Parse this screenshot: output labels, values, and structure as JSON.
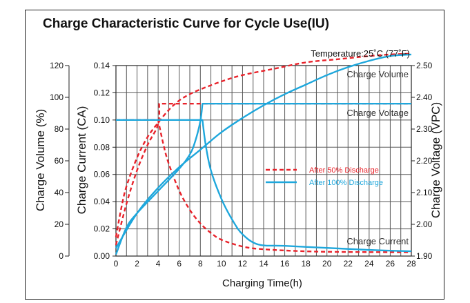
{
  "chart_data": {
    "type": "line",
    "title": "Charge Characteristic Curve for Cycle Use(IU)",
    "subtitle": "Temperature:25˚C (77˚F)",
    "xlabel": "Charging Time(h)",
    "ylabel_volume": "Charge Volume (%)",
    "ylabel_current": "Charge Current (CA)",
    "ylabel_voltage": "Charge Voltage (VPC)",
    "x_range": [
      0,
      28
    ],
    "volume_range": [
      0,
      120
    ],
    "current_range": [
      0,
      0.14
    ],
    "voltage_range": [
      1.9,
      2.5
    ],
    "x_ticks": [
      "0",
      "2",
      "4",
      "6",
      "8",
      "10",
      "12",
      "14",
      "16",
      "18",
      "20",
      "22",
      "24",
      "26",
      "28"
    ],
    "volume_ticks": [
      "0",
      "20",
      "40",
      "60",
      "80",
      "100",
      "120"
    ],
    "current_ticks": [
      "0.00",
      "0.02",
      "0.04",
      "0.06",
      "0.08",
      "0.10",
      "0.12",
      "0.14"
    ],
    "voltage_ticks": [
      "1.90",
      "2.00",
      "2.10",
      "2.20",
      "2.30",
      "2.40",
      "2.50"
    ],
    "grid": true,
    "legend_position": "center-right",
    "annotations": {
      "volume": "Charge Volume",
      "voltage": "Charge Voltage",
      "current": "Charge Current"
    },
    "series": [
      {
        "name": "After 50% Discharge",
        "color": "#e8232b",
        "style": "dashed",
        "volume": [
          [
            0,
            12
          ],
          [
            0.5,
            30
          ],
          [
            1,
            44
          ],
          [
            2,
            62
          ],
          [
            3,
            75
          ],
          [
            4,
            84
          ],
          [
            5,
            92
          ],
          [
            6,
            98
          ],
          [
            7,
            102
          ],
          [
            8,
            105
          ],
          [
            10,
            110
          ],
          [
            12,
            114
          ],
          [
            15,
            118
          ],
          [
            18,
            122
          ],
          [
            21,
            124
          ],
          [
            24,
            126
          ],
          [
            26,
            127
          ],
          [
            28,
            127.5
          ]
        ],
        "current": [
          [
            0,
            0.1
          ],
          [
            4,
            0.1
          ],
          [
            4.5,
            0.082
          ],
          [
            5,
            0.068
          ],
          [
            6,
            0.048
          ],
          [
            7,
            0.034
          ],
          [
            8,
            0.024
          ],
          [
            9,
            0.017
          ],
          [
            10,
            0.012
          ],
          [
            12,
            0.007
          ],
          [
            14,
            0.005
          ],
          [
            18,
            0.0035
          ],
          [
            22,
            0.003
          ],
          [
            28,
            0.0028
          ]
        ],
        "voltage": [
          [
            0,
            1.935
          ],
          [
            1,
            2.065
          ],
          [
            2,
            2.17
          ],
          [
            3,
            2.25
          ],
          [
            4,
            2.315
          ],
          [
            4.1,
            2.38
          ],
          [
            28,
            2.38
          ]
        ]
      },
      {
        "name": "After 100% Discharge",
        "color": "#1ea7dc",
        "style": "solid",
        "volume": [
          [
            0,
            5
          ],
          [
            2,
            27
          ],
          [
            4,
            43
          ],
          [
            6,
            56
          ],
          [
            8,
            67
          ],
          [
            10,
            78
          ],
          [
            12,
            87
          ],
          [
            14,
            95
          ],
          [
            16,
            102
          ],
          [
            18,
            108
          ],
          [
            20,
            114
          ],
          [
            22,
            119
          ],
          [
            24,
            123
          ],
          [
            26,
            126
          ],
          [
            28,
            127
          ]
        ],
        "current": [
          [
            0,
            0.1
          ],
          [
            8.2,
            0.1
          ],
          [
            8.5,
            0.082
          ],
          [
            9,
            0.063
          ],
          [
            10,
            0.042
          ],
          [
            11,
            0.027
          ],
          [
            12,
            0.016
          ],
          [
            13.5,
            0.0085
          ],
          [
            16,
            0.0075
          ],
          [
            20,
            0.006
          ],
          [
            24,
            0.0045
          ],
          [
            28,
            0.0035
          ]
        ],
        "voltage": [
          [
            0,
            1.905
          ],
          [
            1,
            1.99
          ],
          [
            2,
            2.035
          ],
          [
            4,
            2.105
          ],
          [
            6,
            2.175
          ],
          [
            7,
            2.22
          ],
          [
            7.5,
            2.26
          ],
          [
            8,
            2.325
          ],
          [
            8.2,
            2.38
          ],
          [
            28,
            2.38
          ]
        ]
      }
    ]
  }
}
